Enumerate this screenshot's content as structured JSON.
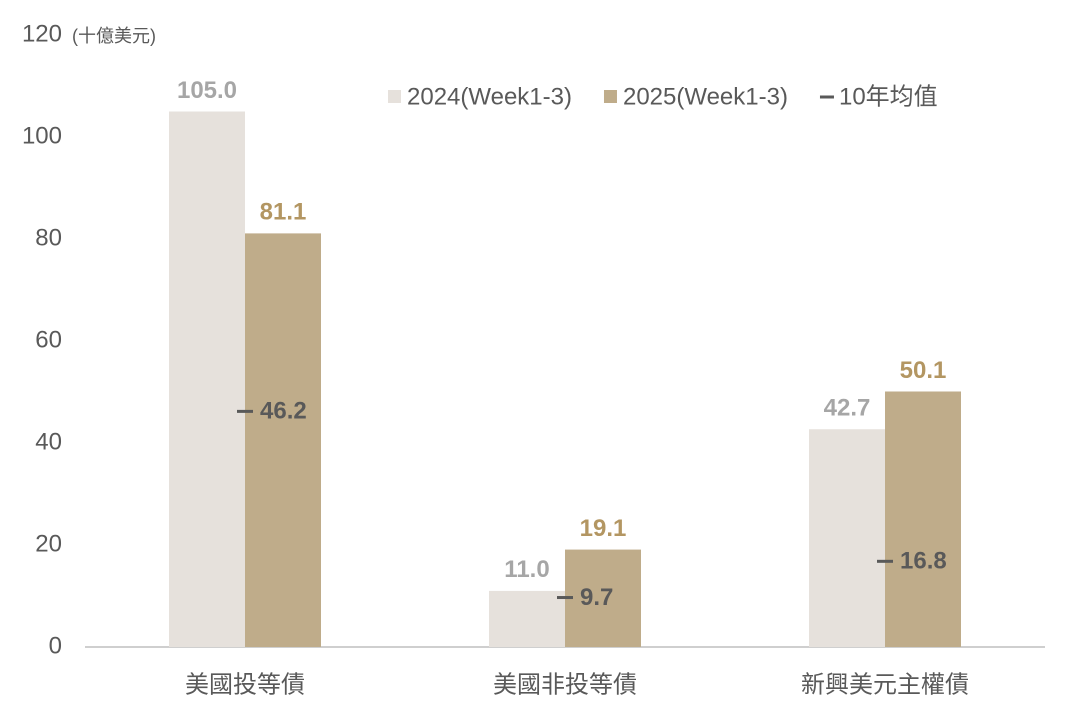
{
  "chart_data": {
    "type": "bar",
    "ylabel": "(十億美元)",
    "categories": [
      "美國投等債",
      "美國非投等債",
      "新興美元主權債"
    ],
    "series": [
      {
        "name": "2024(Week1-3)",
        "color": "#e6e1dc",
        "label_color": "#a6a6a6",
        "values": [
          105.0,
          11.0,
          42.7
        ],
        "value_labels": [
          "105.0",
          "11.0",
          "42.7"
        ]
      },
      {
        "name": "2025(Week1-3)",
        "color": "#bfac8a",
        "label_color": "#b39662",
        "values": [
          81.1,
          19.1,
          50.1
        ]
      },
      {
        "name": "10年均值",
        "color": "#595959",
        "label_color": "#595959",
        "marker": "dash",
        "values": [
          46.2,
          9.7,
          16.8
        ]
      }
    ],
    "ylim": [
      0,
      120
    ],
    "yticks": [
      0,
      20,
      40,
      60,
      80,
      100,
      120
    ],
    "grid": false,
    "legend": "top-right"
  }
}
